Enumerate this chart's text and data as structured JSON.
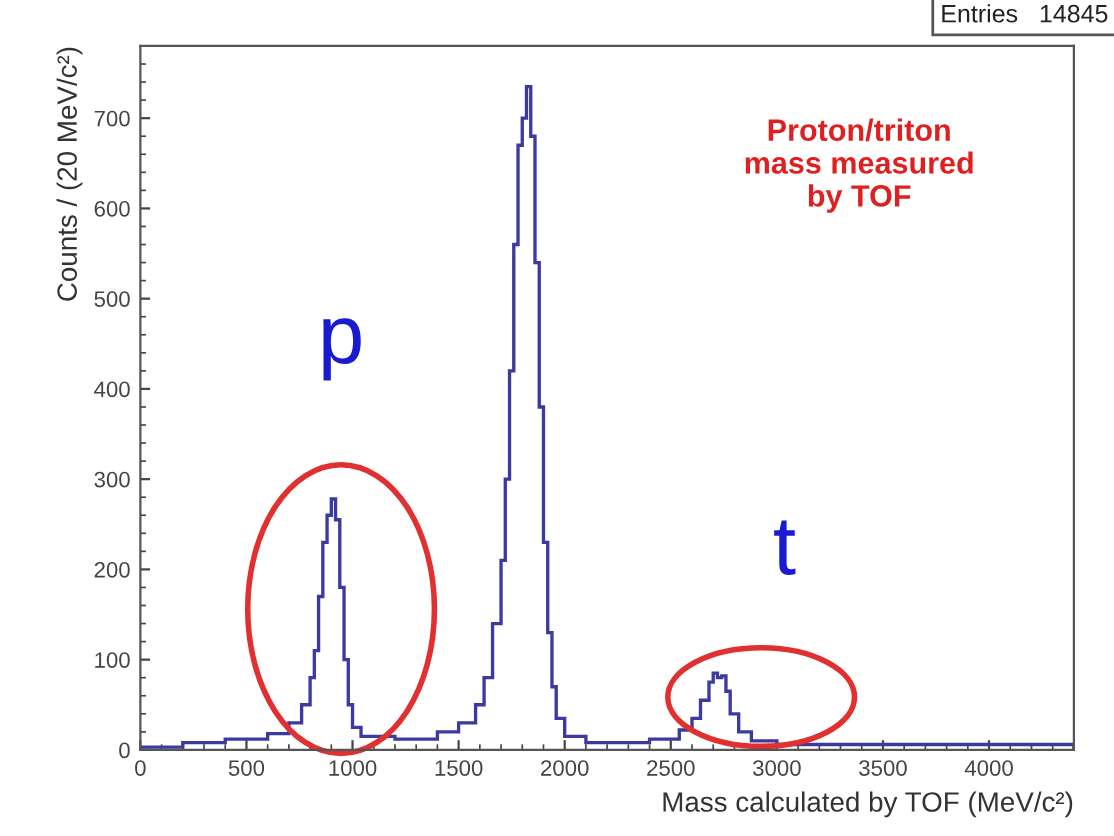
{
  "chart_data": {
    "type": "histogram",
    "xlabel": "Mass calculated by TOF (MeV/c²)",
    "ylabel": "Counts / (20 MeV/c²)",
    "bins": [
      0,
      200,
      400,
      600,
      700,
      760,
      800,
      820,
      840,
      860,
      880,
      900,
      920,
      940,
      960,
      980,
      1000,
      1040,
      1200,
      1400,
      1500,
      1580,
      1620,
      1660,
      1700,
      1720,
      1740,
      1760,
      1780,
      1800,
      1820,
      1840,
      1860,
      1880,
      1900,
      1920,
      1940,
      1960,
      2000,
      2100,
      2400,
      2540,
      2600,
      2640,
      2680,
      2700,
      2720,
      2740,
      2760,
      2780,
      2820,
      2880,
      3000,
      4400
    ],
    "values": [
      3,
      8,
      12,
      18,
      30,
      50,
      80,
      110,
      170,
      230,
      260,
      278,
      255,
      180,
      100,
      50,
      25,
      15,
      12,
      20,
      30,
      50,
      80,
      140,
      210,
      300,
      420,
      560,
      670,
      700,
      735,
      680,
      540,
      380,
      230,
      130,
      70,
      35,
      15,
      8,
      12,
      22,
      35,
      55,
      75,
      85,
      80,
      82,
      65,
      40,
      20,
      10,
      6
    ],
    "color": "#3a3aa0",
    "xlim": [
      0,
      4400
    ],
    "ylim": [
      0,
      780
    ],
    "xticks": [
      0,
      500,
      1000,
      1500,
      2000,
      2500,
      3000,
      3500,
      4000
    ],
    "yticks": [
      0,
      100,
      200,
      300,
      400,
      500,
      600,
      700
    ],
    "grid": false,
    "annotations": [
      "Entries   14845",
      "Proton/triton\nmass measured\nby TOF",
      "p",
      "t"
    ]
  }
}
